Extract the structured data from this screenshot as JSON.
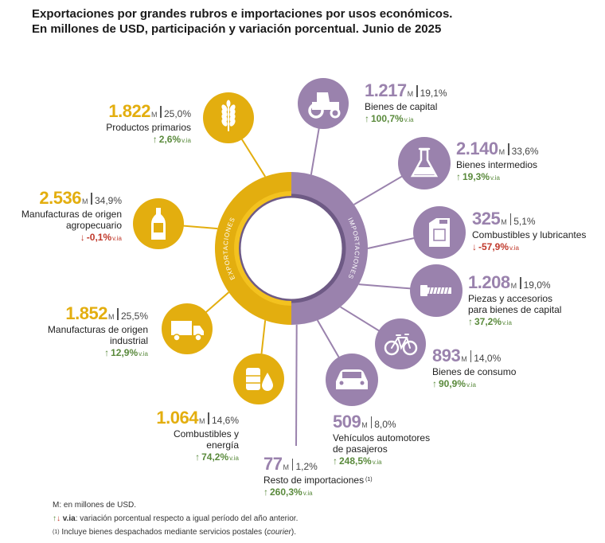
{
  "title": {
    "line1": "Exportaciones por grandes rubros e importaciones por usos económicos.",
    "line2": "En millones de USD, participación y variación porcentual. Junio de 2025"
  },
  "ring_labels": {
    "exports": "EXPORTACIONES",
    "imports": "IMPORTACIONES"
  },
  "colors": {
    "exports": "#e3ae0f",
    "imports": "#9a82ad",
    "ring_inner": "#ffffff",
    "up": "#5a8a3c",
    "down": "#c0392b"
  },
  "unit_symbol": "M",
  "via_label": "v.ia",
  "chart_data": {
    "type": "table",
    "title": "Exportaciones por grandes rubros e importaciones por usos económicos. En millones de USD, participación y variación porcentual. Junio de 2025",
    "exports": [
      {
        "name": "Productos primarios",
        "value": "1.822",
        "share": "25,0%",
        "variation": "2,6%",
        "direction": "up",
        "icon": "wheat-icon"
      },
      {
        "name": "Manufacturas de origen agropecuario",
        "value": "2.536",
        "share": "34,9%",
        "variation": "-0,1%",
        "direction": "down",
        "icon": "bottle-icon"
      },
      {
        "name": "Manufacturas de origen industrial",
        "value": "1.852",
        "share": "25,5%",
        "variation": "12,9%",
        "direction": "up",
        "icon": "truck-icon"
      },
      {
        "name": "Combustibles y energía",
        "value": "1.064",
        "share": "14,6%",
        "variation": "74,2%",
        "direction": "up",
        "icon": "fuel-drop-icon"
      }
    ],
    "imports": [
      {
        "name": "Bienes de capital",
        "value": "1.217",
        "share": "19,1%",
        "variation": "100,7%",
        "direction": "up",
        "icon": "tractor-icon"
      },
      {
        "name": "Bienes intermedios",
        "value": "2.140",
        "share": "33,6%",
        "variation": "19,3%",
        "direction": "up",
        "icon": "flask-icon"
      },
      {
        "name": "Combustibles y lubricantes",
        "value": "325",
        "share": "5,1%",
        "variation": "-57,9%",
        "direction": "down",
        "icon": "jerrycan-icon"
      },
      {
        "name": "Piezas y accesorios para bienes de capital",
        "value": "1.208",
        "share": "19,0%",
        "variation": "37,2%",
        "direction": "up",
        "icon": "bolt-icon"
      },
      {
        "name": "Bienes de consumo",
        "value": "893",
        "share": "14,0%",
        "variation": "90,9%",
        "direction": "up",
        "icon": "bicycle-icon"
      },
      {
        "name": "Vehículos automotores de pasajeros",
        "value": "509",
        "share": "8,0%",
        "variation": "248,5%",
        "direction": "up",
        "icon": "car-icon"
      },
      {
        "name": "Resto de importaciones",
        "value": "77",
        "share": "1,2%",
        "variation": "260,3%",
        "direction": "up",
        "icon": "",
        "note": "(1)"
      }
    ]
  },
  "footnotes": {
    "m_note": "M: en millones de USD.",
    "via_key": "v.ia",
    "via_note": ": variación porcentual respecto a igual período del año anterior.",
    "note1_marker": "(1)",
    "note1_text": "Incluye bienes despachados mediante servicios postales (",
    "note1_italic": "courier",
    "note1_end": ")."
  }
}
